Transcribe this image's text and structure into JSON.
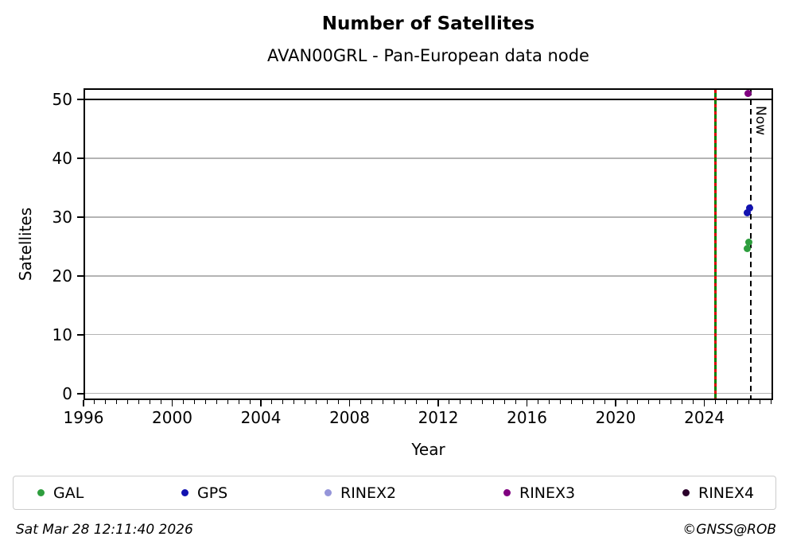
{
  "title": "Number of Satellites",
  "subtitle": "AVAN00GRL - Pan-European data node",
  "footer": {
    "timestamp": "Sat Mar 28 12:11:40 2026",
    "credit": "©GNSS@ROB"
  },
  "chart_data": {
    "type": "scatter",
    "title": "Number of Satellites",
    "subtitle": "AVAN00GRL - Pan-European data node",
    "xlabel": "Year",
    "ylabel": "Satellites",
    "xlim": [
      1996,
      2027.1
    ],
    "ylim": [
      -1.1,
      51.9
    ],
    "xticks": [
      1996,
      2000,
      2004,
      2008,
      2012,
      2016,
      2020,
      2024
    ],
    "x_minor_step": 0.5,
    "yticks": [
      0,
      10,
      20,
      30,
      40,
      50
    ],
    "grid": "horizontal",
    "grid_color": "#b4b4b4",
    "reference_line": {
      "y": 50,
      "color": "#000000"
    },
    "event_line": {
      "x": 2024.5,
      "colors": [
        "#008000",
        "#dd0000"
      ],
      "style": "red-dashes-over-green"
    },
    "now_line": {
      "x": 2026.1,
      "label": "Now",
      "style": "dashed",
      "color": "#000000"
    },
    "series": [
      {
        "name": "GAL",
        "color": "#2e9e3e",
        "points": [
          [
            2025.93,
            24.6
          ],
          [
            2026.0,
            25.8
          ]
        ]
      },
      {
        "name": "GPS",
        "color": "#1212b0",
        "points": [
          [
            2025.95,
            30.7
          ],
          [
            2026.03,
            31.6
          ]
        ]
      },
      {
        "name": "RINEX2",
        "color": "#9595d9",
        "points": []
      },
      {
        "name": "RINEX3",
        "color": "#800080",
        "points": [
          [
            2025.98,
            51.0
          ]
        ]
      },
      {
        "name": "RINEX4",
        "color": "#2b012b",
        "points": []
      }
    ],
    "legend_position": "bottom"
  }
}
